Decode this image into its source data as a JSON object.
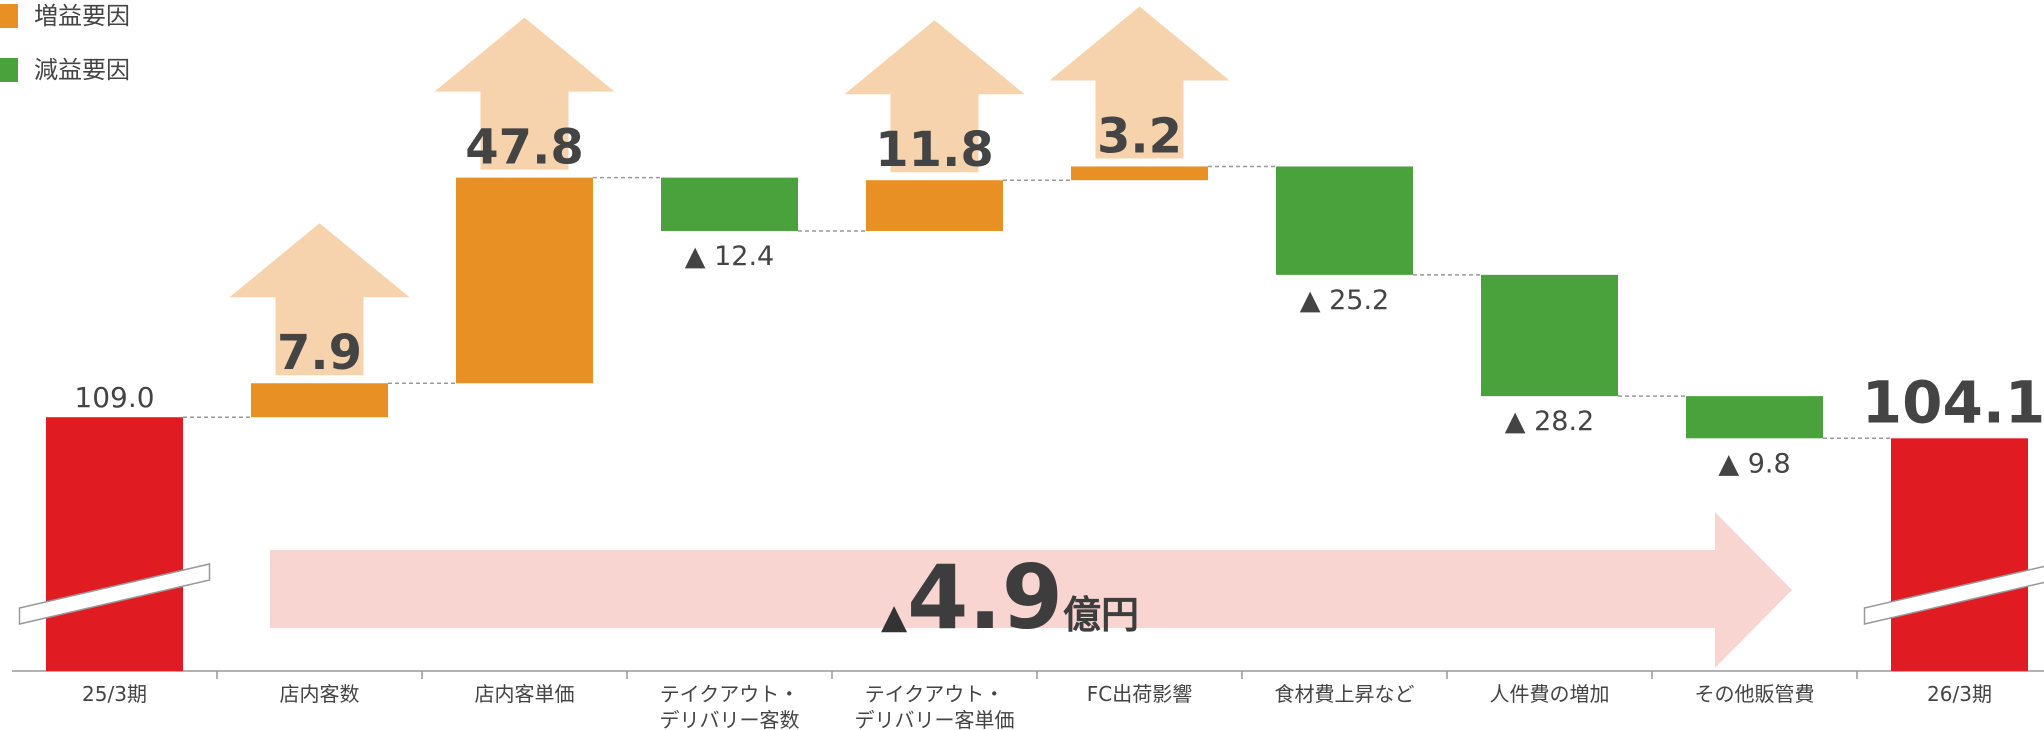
{
  "chart_data": {
    "type": "waterfall",
    "categories": [
      "25/3期",
      "店内客数",
      "店内客単価",
      "テイクアウト・\nデリバリー客数",
      "テイクアウト・\nデリバリー客単価",
      "FC出荷影響",
      "食材費上昇など",
      "人件費の増加",
      "その他販管費",
      "26/3期"
    ],
    "values": [
      109.0,
      7.9,
      47.8,
      -12.4,
      11.8,
      3.2,
      -25.2,
      -28.2,
      -9.8,
      104.1
    ],
    "value_labels": [
      "109.0",
      "7.9",
      "47.8",
      "▲ 12.4",
      "11.8",
      "3.2",
      "▲ 25.2",
      "▲ 28.2",
      "▲ 9.8",
      "104.1"
    ],
    "ylim": [
      50,
      206
    ],
    "total_color": "#e01b22",
    "legend": [
      {
        "name": "増益要因",
        "color": "#e89024"
      },
      {
        "name": "減益要因",
        "color": "#4aa23c"
      }
    ],
    "annotation": {
      "mark": "▲",
      "text": "4.9",
      "unit": "億円"
    }
  }
}
